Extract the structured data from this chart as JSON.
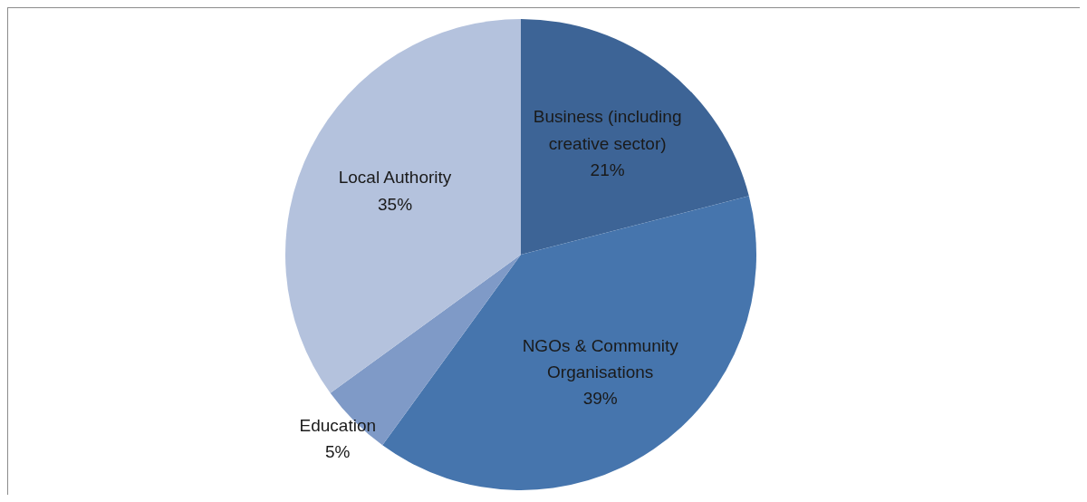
{
  "chart_data": {
    "type": "pie",
    "categories": [
      "Business (including creative sector)",
      "NGOs & Community Organisations",
      "Education",
      "Local Authority"
    ],
    "values": [
      21,
      39,
      5,
      35
    ],
    "value_labels": [
      "21%",
      "39%",
      "5%",
      "35%"
    ],
    "colors": [
      "#3d6496",
      "#4675ad",
      "#7f9ac7",
      "#b4c2dd"
    ]
  }
}
